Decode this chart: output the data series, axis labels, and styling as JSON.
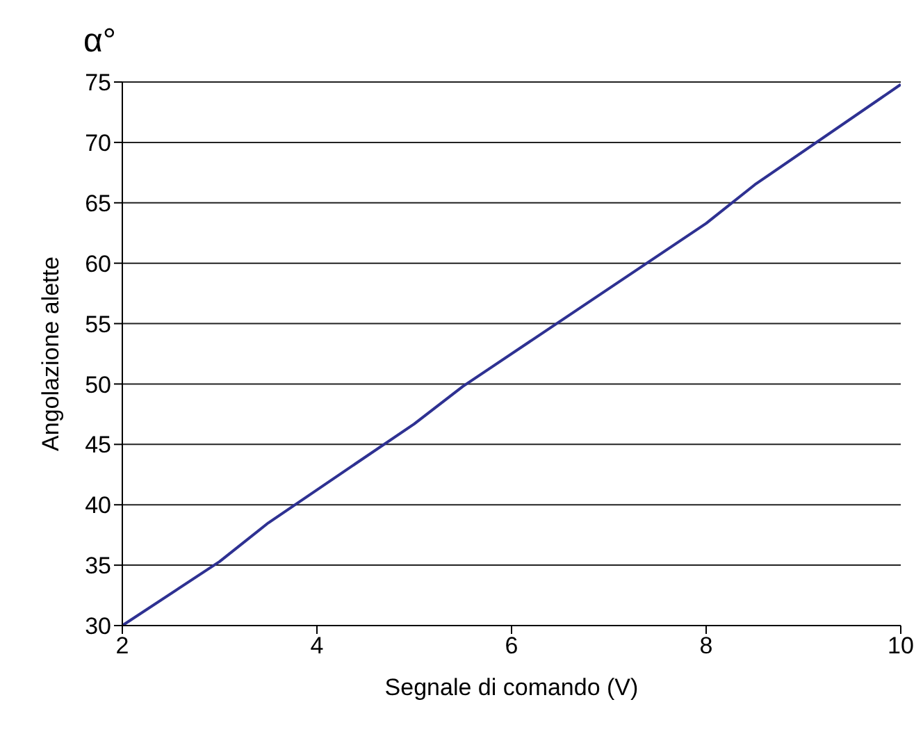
{
  "chart_data": {
    "type": "line",
    "xlabel": "Segnale di comando (V)",
    "ylabel": "Angolazione alette",
    "annotations": [
      "α°"
    ],
    "x": [
      2,
      3,
      3.5,
      5,
      5.5,
      8,
      8.5,
      10
    ],
    "series": [
      {
        "color": "#2e3192",
        "values": [
          30,
          35.3,
          38.5,
          46.7,
          49.8,
          63.3,
          66.5,
          74.8
        ]
      }
    ],
    "xlim": [
      2,
      10
    ],
    "xticks": [
      2,
      4,
      6,
      8,
      10
    ],
    "ylim": [
      30,
      75
    ],
    "yticks": [
      30,
      35,
      40,
      45,
      50,
      55,
      60,
      65,
      70,
      75
    ],
    "grid": "y",
    "legend": false,
    "marker": "none",
    "line_style": "solid"
  }
}
